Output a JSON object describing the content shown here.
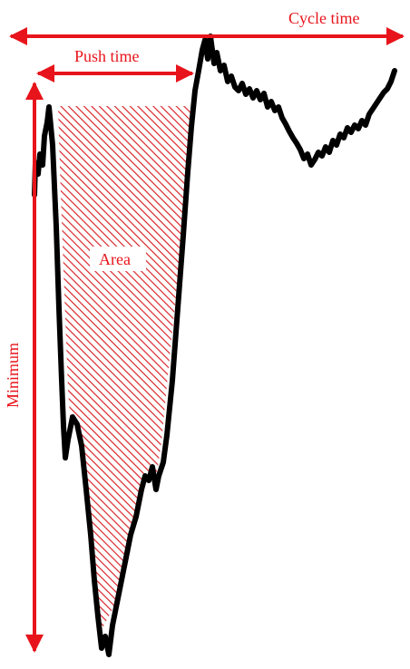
{
  "labels": {
    "cycle_time": "Cycle time",
    "push_time": "Push time",
    "minimum": "Minimum",
    "area": "Area"
  },
  "colors": {
    "annotation": "#e8141b",
    "curve": "#000000",
    "hatch": "#d9262b",
    "background": "#ffffff"
  }
}
